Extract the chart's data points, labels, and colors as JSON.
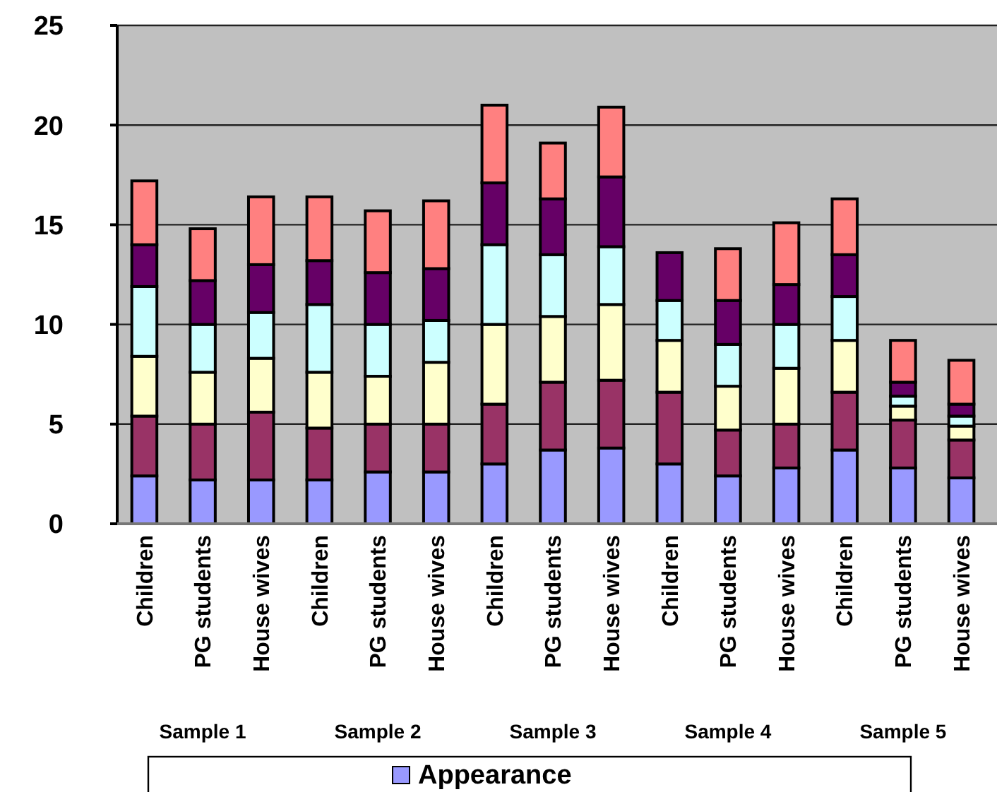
{
  "chart_data": {
    "type": "bar",
    "stacked": true,
    "categories": [
      "Children",
      "PG students",
      "House wives",
      "Children",
      "PG students",
      "House wives",
      "Children",
      "PG students",
      "House wives",
      "Children",
      "PG students",
      "House wives",
      "Children",
      "PG students",
      "House wives"
    ],
    "series": [
      {
        "name": "Appearance",
        "color": "#9999ff",
        "values": [
          2.4,
          2.2,
          2.2,
          2.2,
          2.6,
          2.6,
          3.0,
          3.7,
          3.8,
          3.0,
          2.4,
          2.8,
          3.7,
          2.8,
          2.3
        ]
      },
      {
        "color": "#993366",
        "values": [
          3.0,
          2.8,
          3.4,
          2.6,
          2.4,
          2.4,
          3.0,
          3.4,
          3.4,
          3.6,
          2.3,
          2.2,
          2.9,
          2.4,
          1.9
        ]
      },
      {
        "color": "#ffffcc",
        "values": [
          3.0,
          2.6,
          2.7,
          2.8,
          2.4,
          3.1,
          4.0,
          3.3,
          3.8,
          2.6,
          2.2,
          2.8,
          2.6,
          0.7,
          0.7
        ]
      },
      {
        "color": "#ccffff",
        "values": [
          3.5,
          2.4,
          2.3,
          3.4,
          2.6,
          2.1,
          4.0,
          3.1,
          2.9,
          2.0,
          2.1,
          2.2,
          2.2,
          0.5,
          0.5
        ]
      },
      {
        "color": "#660066",
        "values": [
          2.1,
          2.2,
          2.4,
          2.2,
          2.6,
          2.6,
          3.1,
          2.8,
          3.5,
          2.4,
          2.2,
          2.0,
          2.1,
          0.7,
          0.6
        ]
      },
      {
        "color": "#ff8080",
        "values": [
          3.2,
          2.6,
          3.4,
          3.2,
          3.1,
          3.4,
          3.9,
          2.8,
          3.5,
          0,
          2.6,
          3.1,
          2.8,
          2.1,
          2.2
        ]
      }
    ],
    "annotations": [
      "Sample 1",
      "Sample 2",
      "Sample 3",
      "Sample 4",
      "Sample 5"
    ],
    "ylim": [
      0,
      25
    ],
    "yticks": [
      0,
      5,
      10,
      15,
      20,
      25
    ],
    "grid": "y",
    "legend": "bottom"
  }
}
